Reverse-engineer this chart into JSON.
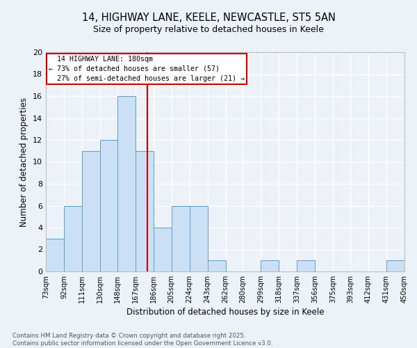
{
  "title1": "14, HIGHWAY LANE, KEELE, NEWCASTLE, ST5 5AN",
  "title2": "Size of property relative to detached houses in Keele",
  "xlabel": "Distribution of detached houses by size in Keele",
  "ylabel": "Number of detached properties",
  "bin_edges": [
    73,
    92,
    111,
    130,
    148,
    167,
    186,
    205,
    224,
    243,
    262,
    280,
    299,
    318,
    337,
    356,
    375,
    393,
    412,
    431,
    450
  ],
  "bar_heights": [
    3,
    6,
    11,
    12,
    16,
    11,
    4,
    6,
    6,
    1,
    0,
    0,
    1,
    0,
    1,
    0,
    0,
    0,
    0,
    1
  ],
  "bar_color": "#cce0f5",
  "bar_edge_color": "#5a9dc8",
  "red_line_x": 180,
  "ylim": [
    0,
    20
  ],
  "yticks": [
    0,
    2,
    4,
    6,
    8,
    10,
    12,
    14,
    16,
    18,
    20
  ],
  "annotation_text": "  14 HIGHWAY LANE: 180sqm\n← 73% of detached houses are smaller (57)\n  27% of semi-detached houses are larger (21) →",
  "annotation_box_color": "#ffffff",
  "annotation_box_edge": "#cc0000",
  "footer_text": "Contains HM Land Registry data © Crown copyright and database right 2025.\nContains public sector information licensed under the Open Government Licence v3.0.",
  "background_color": "#edf2f9",
  "grid_color": "#ffffff",
  "tick_labels": [
    "73sqm",
    "92sqm",
    "111sqm",
    "130sqm",
    "148sqm",
    "167sqm",
    "186sqm",
    "205sqm",
    "224sqm",
    "243sqm",
    "262sqm",
    "280sqm",
    "299sqm",
    "318sqm",
    "337sqm",
    "356sqm",
    "375sqm",
    "393sqm",
    "412sqm",
    "431sqm",
    "450sqm"
  ]
}
